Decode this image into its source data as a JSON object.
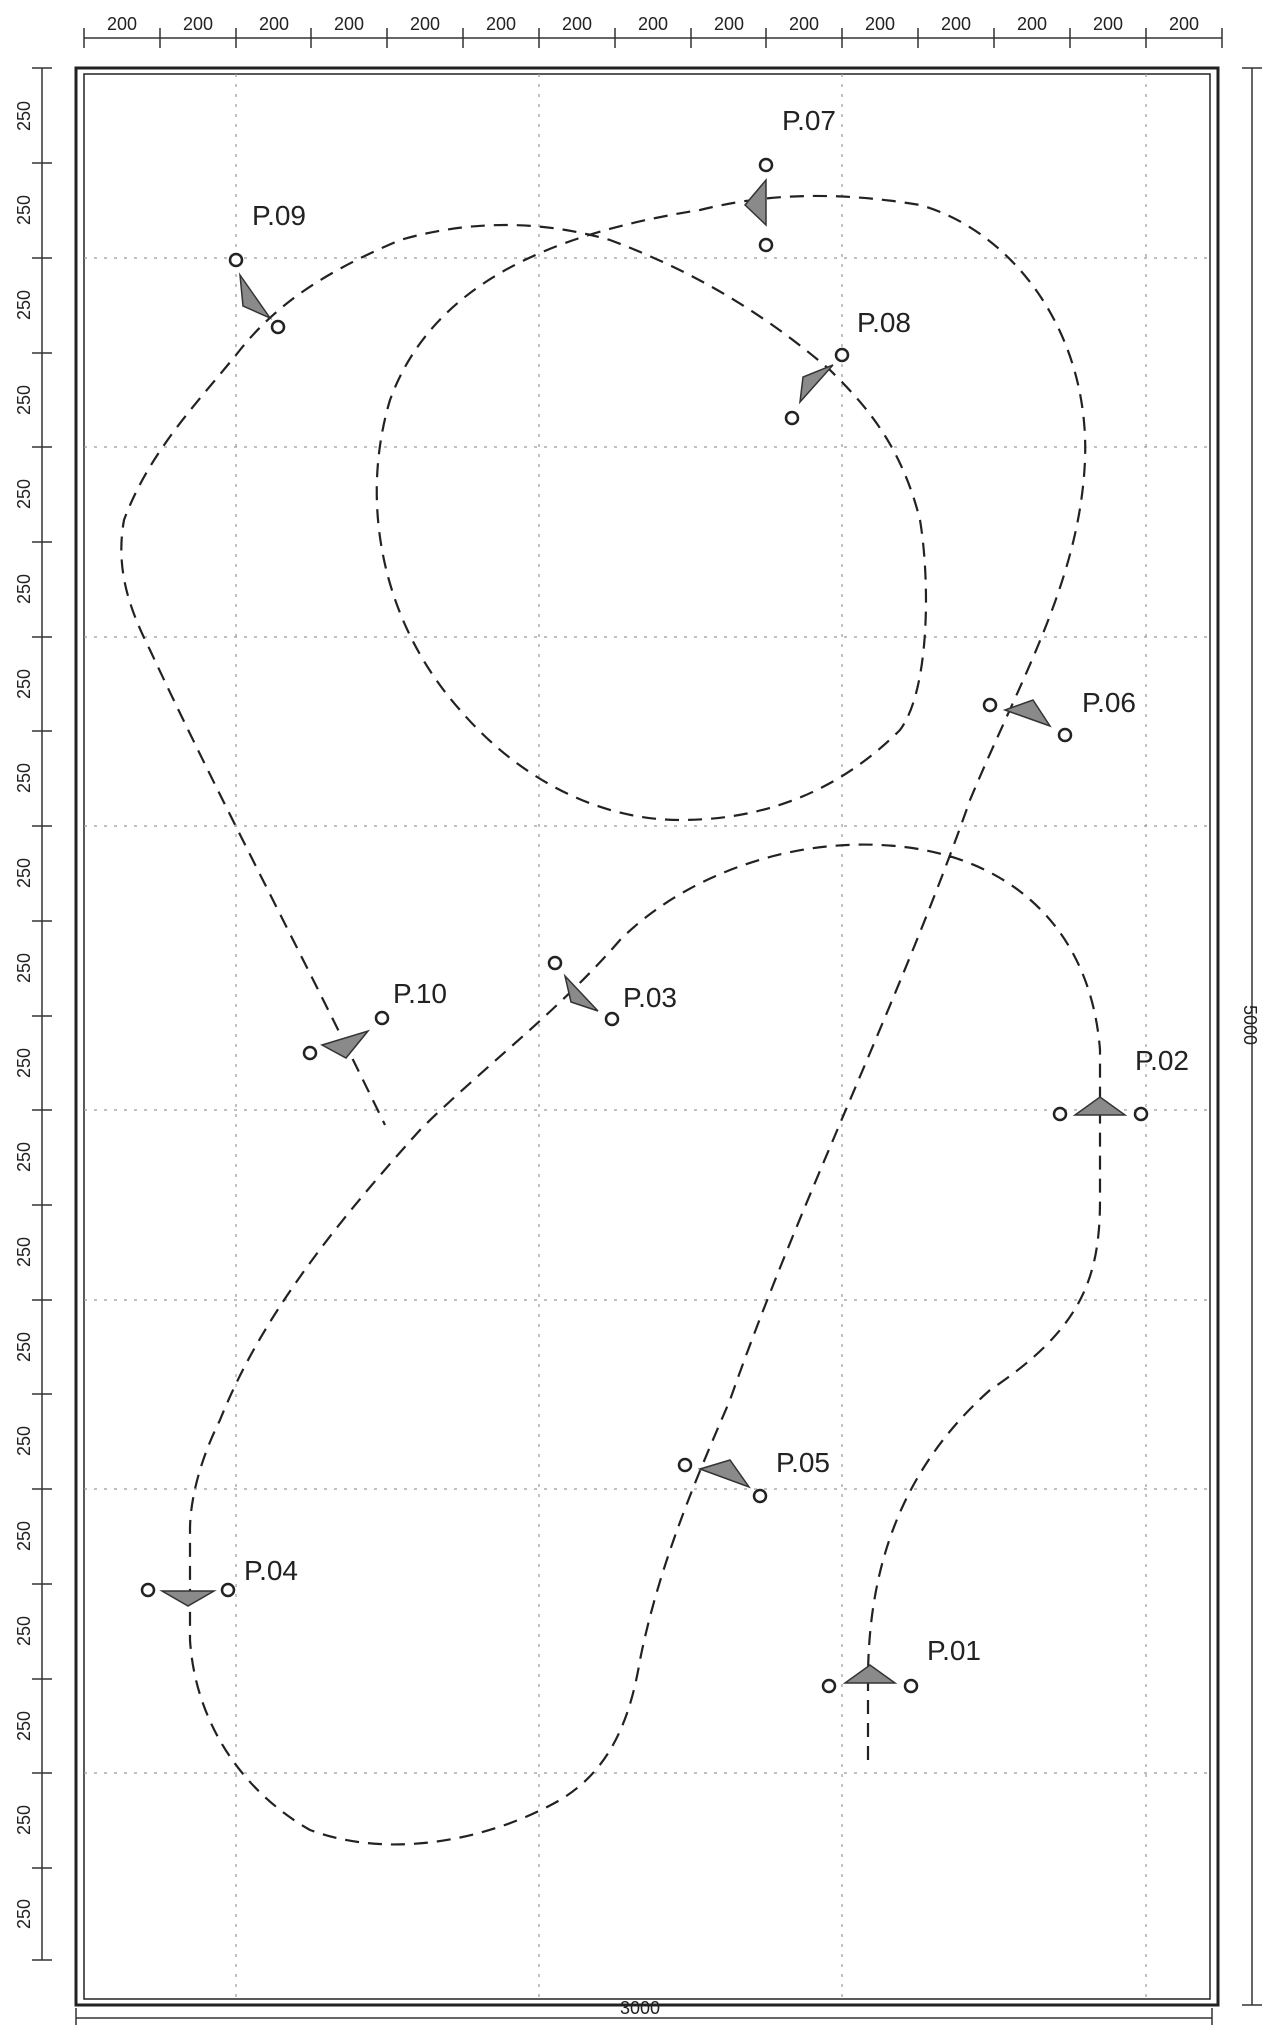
{
  "dimensions": {
    "top_segments": [
      "200",
      "200",
      "200",
      "200",
      "200",
      "200",
      "200",
      "200",
      "200",
      "200",
      "200",
      "200",
      "200",
      "200",
      "200"
    ],
    "left_segments": [
      "250",
      "250",
      "250",
      "250",
      "250",
      "250",
      "250",
      "250",
      "250",
      "250",
      "250",
      "250",
      "250",
      "250",
      "250",
      "250",
      "250",
      "250",
      "250",
      "250"
    ],
    "total_width": "3000",
    "total_height": "5000"
  },
  "gates": [
    {
      "label": "P.01"
    },
    {
      "label": "P.02"
    },
    {
      "label": "P.03"
    },
    {
      "label": "P.04"
    },
    {
      "label": "P.05"
    },
    {
      "label": "P.06"
    },
    {
      "label": "P.07"
    },
    {
      "label": "P.08"
    },
    {
      "label": "P.09"
    },
    {
      "label": "P.10"
    }
  ],
  "colors": {
    "line": "#222222",
    "flag_fill": "#8a8a8a",
    "grid": "#999999"
  }
}
